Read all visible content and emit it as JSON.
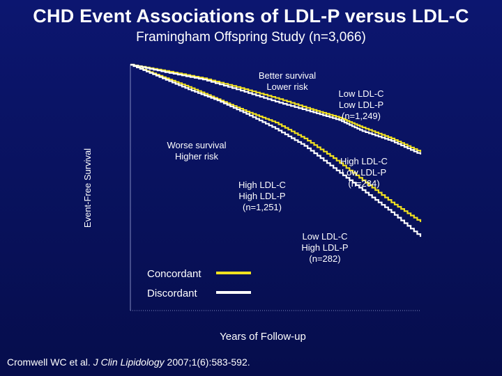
{
  "title": "CHD Event Associations of LDL-P versus LDL-C",
  "subtitle": "Framingham Offspring Study (n=3,066)",
  "citation": {
    "author": "Cromwell WC et al.",
    "journal": "J Clin Lipidology",
    "ref": "2007;1(6):583-592."
  },
  "colors": {
    "concordant": "#f0e020",
    "discordant": "#ffffff",
    "background": "#0a1464"
  },
  "chart_data": {
    "type": "line",
    "title": "",
    "xlabel": "Years of Follow-up",
    "ylabel": "Event-Free Survival",
    "xlim": [
      0,
      1
    ],
    "ylim": [
      0,
      1
    ],
    "grid": false,
    "legend_position": "bottom-left",
    "legend": [
      {
        "label": "Concordant",
        "color": "#f0e020"
      },
      {
        "label": "Discordant",
        "color": "#ffffff"
      }
    ],
    "series": [
      {
        "name": "Low LDL-C Low LDL-P (n=1,249)",
        "group": "Concordant",
        "color": "#f0e020",
        "x": [
          0,
          0.12,
          0.25,
          0.38,
          0.5,
          0.62,
          0.72,
          0.8,
          0.9,
          1.0
        ],
        "y": [
          1.0,
          0.975,
          0.945,
          0.905,
          0.865,
          0.82,
          0.785,
          0.745,
          0.7,
          0.645
        ]
      },
      {
        "name": "High LDL-C Low LDL-P (n=284)",
        "group": "Discordant",
        "color": "#ffffff",
        "x": [
          0,
          0.12,
          0.25,
          0.38,
          0.5,
          0.62,
          0.72,
          0.8,
          0.9,
          1.0
        ],
        "y": [
          1.0,
          0.97,
          0.94,
          0.895,
          0.85,
          0.81,
          0.775,
          0.73,
          0.69,
          0.635
        ]
      },
      {
        "name": "High LDL-C High LDL-P (n=1,251)",
        "group": "Concordant",
        "color": "#f0e020",
        "x": [
          0,
          0.1,
          0.2,
          0.3,
          0.4,
          0.5,
          0.6,
          0.7,
          0.8,
          0.9,
          1.0
        ],
        "y": [
          1.0,
          0.955,
          0.91,
          0.86,
          0.81,
          0.765,
          0.7,
          0.62,
          0.53,
          0.44,
          0.36
        ]
      },
      {
        "name": "Low LDL-C High LDL-P (n=282)",
        "group": "Discordant",
        "color": "#ffffff",
        "x": [
          0,
          0.1,
          0.2,
          0.3,
          0.4,
          0.5,
          0.6,
          0.7,
          0.8,
          0.9,
          1.0
        ],
        "y": [
          1.0,
          0.95,
          0.9,
          0.855,
          0.8,
          0.74,
          0.67,
          0.58,
          0.49,
          0.4,
          0.3
        ]
      }
    ],
    "annotations": [
      {
        "id": "better",
        "lines": [
          "Better survival",
          "Lower risk"
        ]
      },
      {
        "id": "worse",
        "lines": [
          "Worse survival",
          "Higher risk"
        ]
      },
      {
        "id": "lowc-lowp",
        "lines": [
          "Low LDL-C",
          "Low LDL-P",
          "(n=1,249)"
        ]
      },
      {
        "id": "highc-lowp",
        "lines": [
          "High LDL-C",
          "Low LDL-P",
          "(n=284)"
        ]
      },
      {
        "id": "highc-highp",
        "lines": [
          "High LDL-C",
          "High LDL-P",
          "(n=1,251)"
        ]
      },
      {
        "id": "lowc-highp",
        "lines": [
          "Low LDL-C",
          "High LDL-P",
          "(n=282)"
        ]
      }
    ]
  }
}
